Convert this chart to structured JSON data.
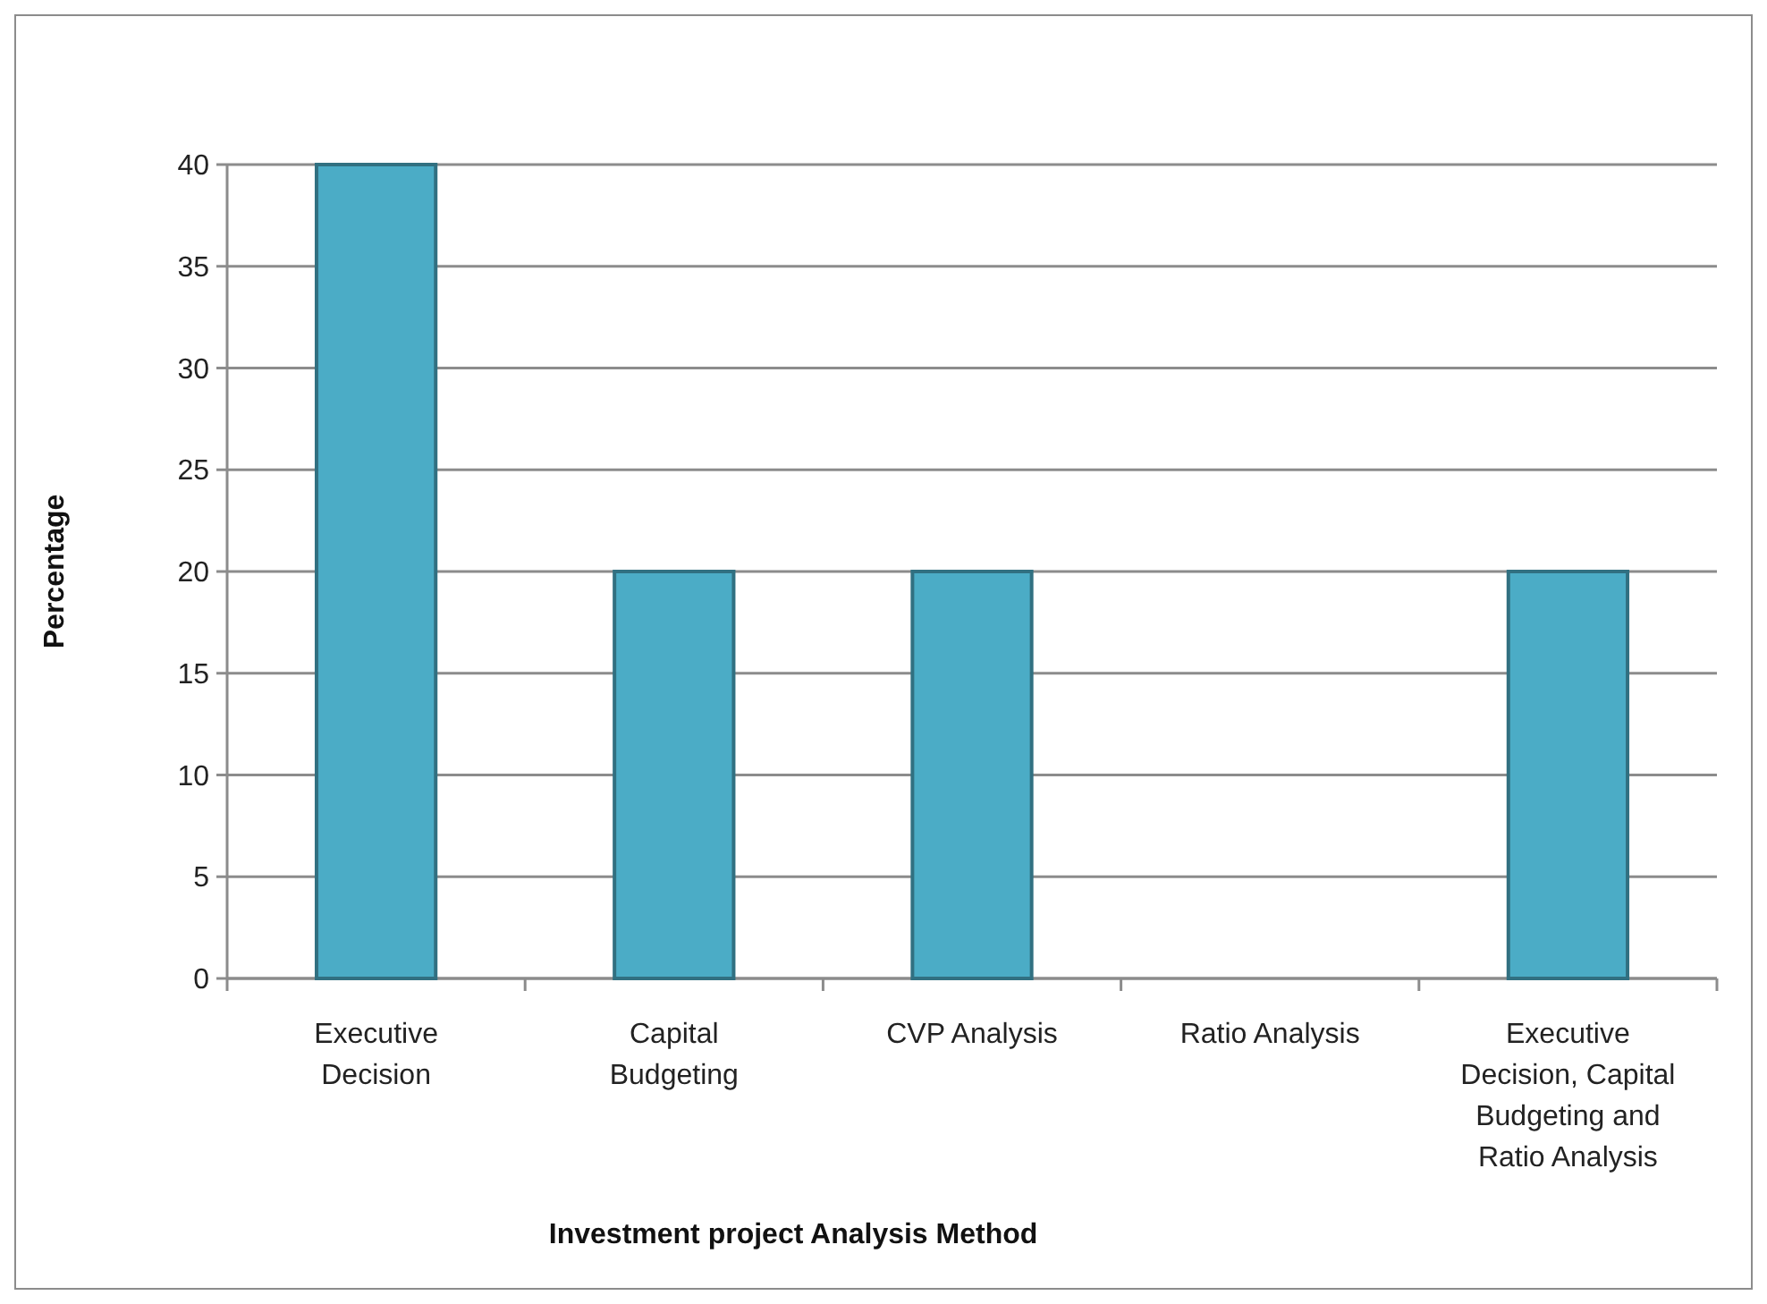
{
  "chart_data": {
    "type": "bar",
    "xlabel": "Investment project Analysis Method",
    "ylabel": "Percentage",
    "categories": [
      "Executive Decision",
      "Capital Budgeting",
      "CVP Analysis",
      "Ratio Analysis",
      "Executive Decision, Capital Budgeting and Ratio Analysis"
    ],
    "values": [
      40,
      20,
      20,
      0,
      20
    ],
    "color": "#4bacc6",
    "ylim": [
      0,
      40
    ],
    "yticks": [
      0,
      5,
      10,
      15,
      20,
      25,
      30,
      35,
      40
    ],
    "grid": "y"
  }
}
